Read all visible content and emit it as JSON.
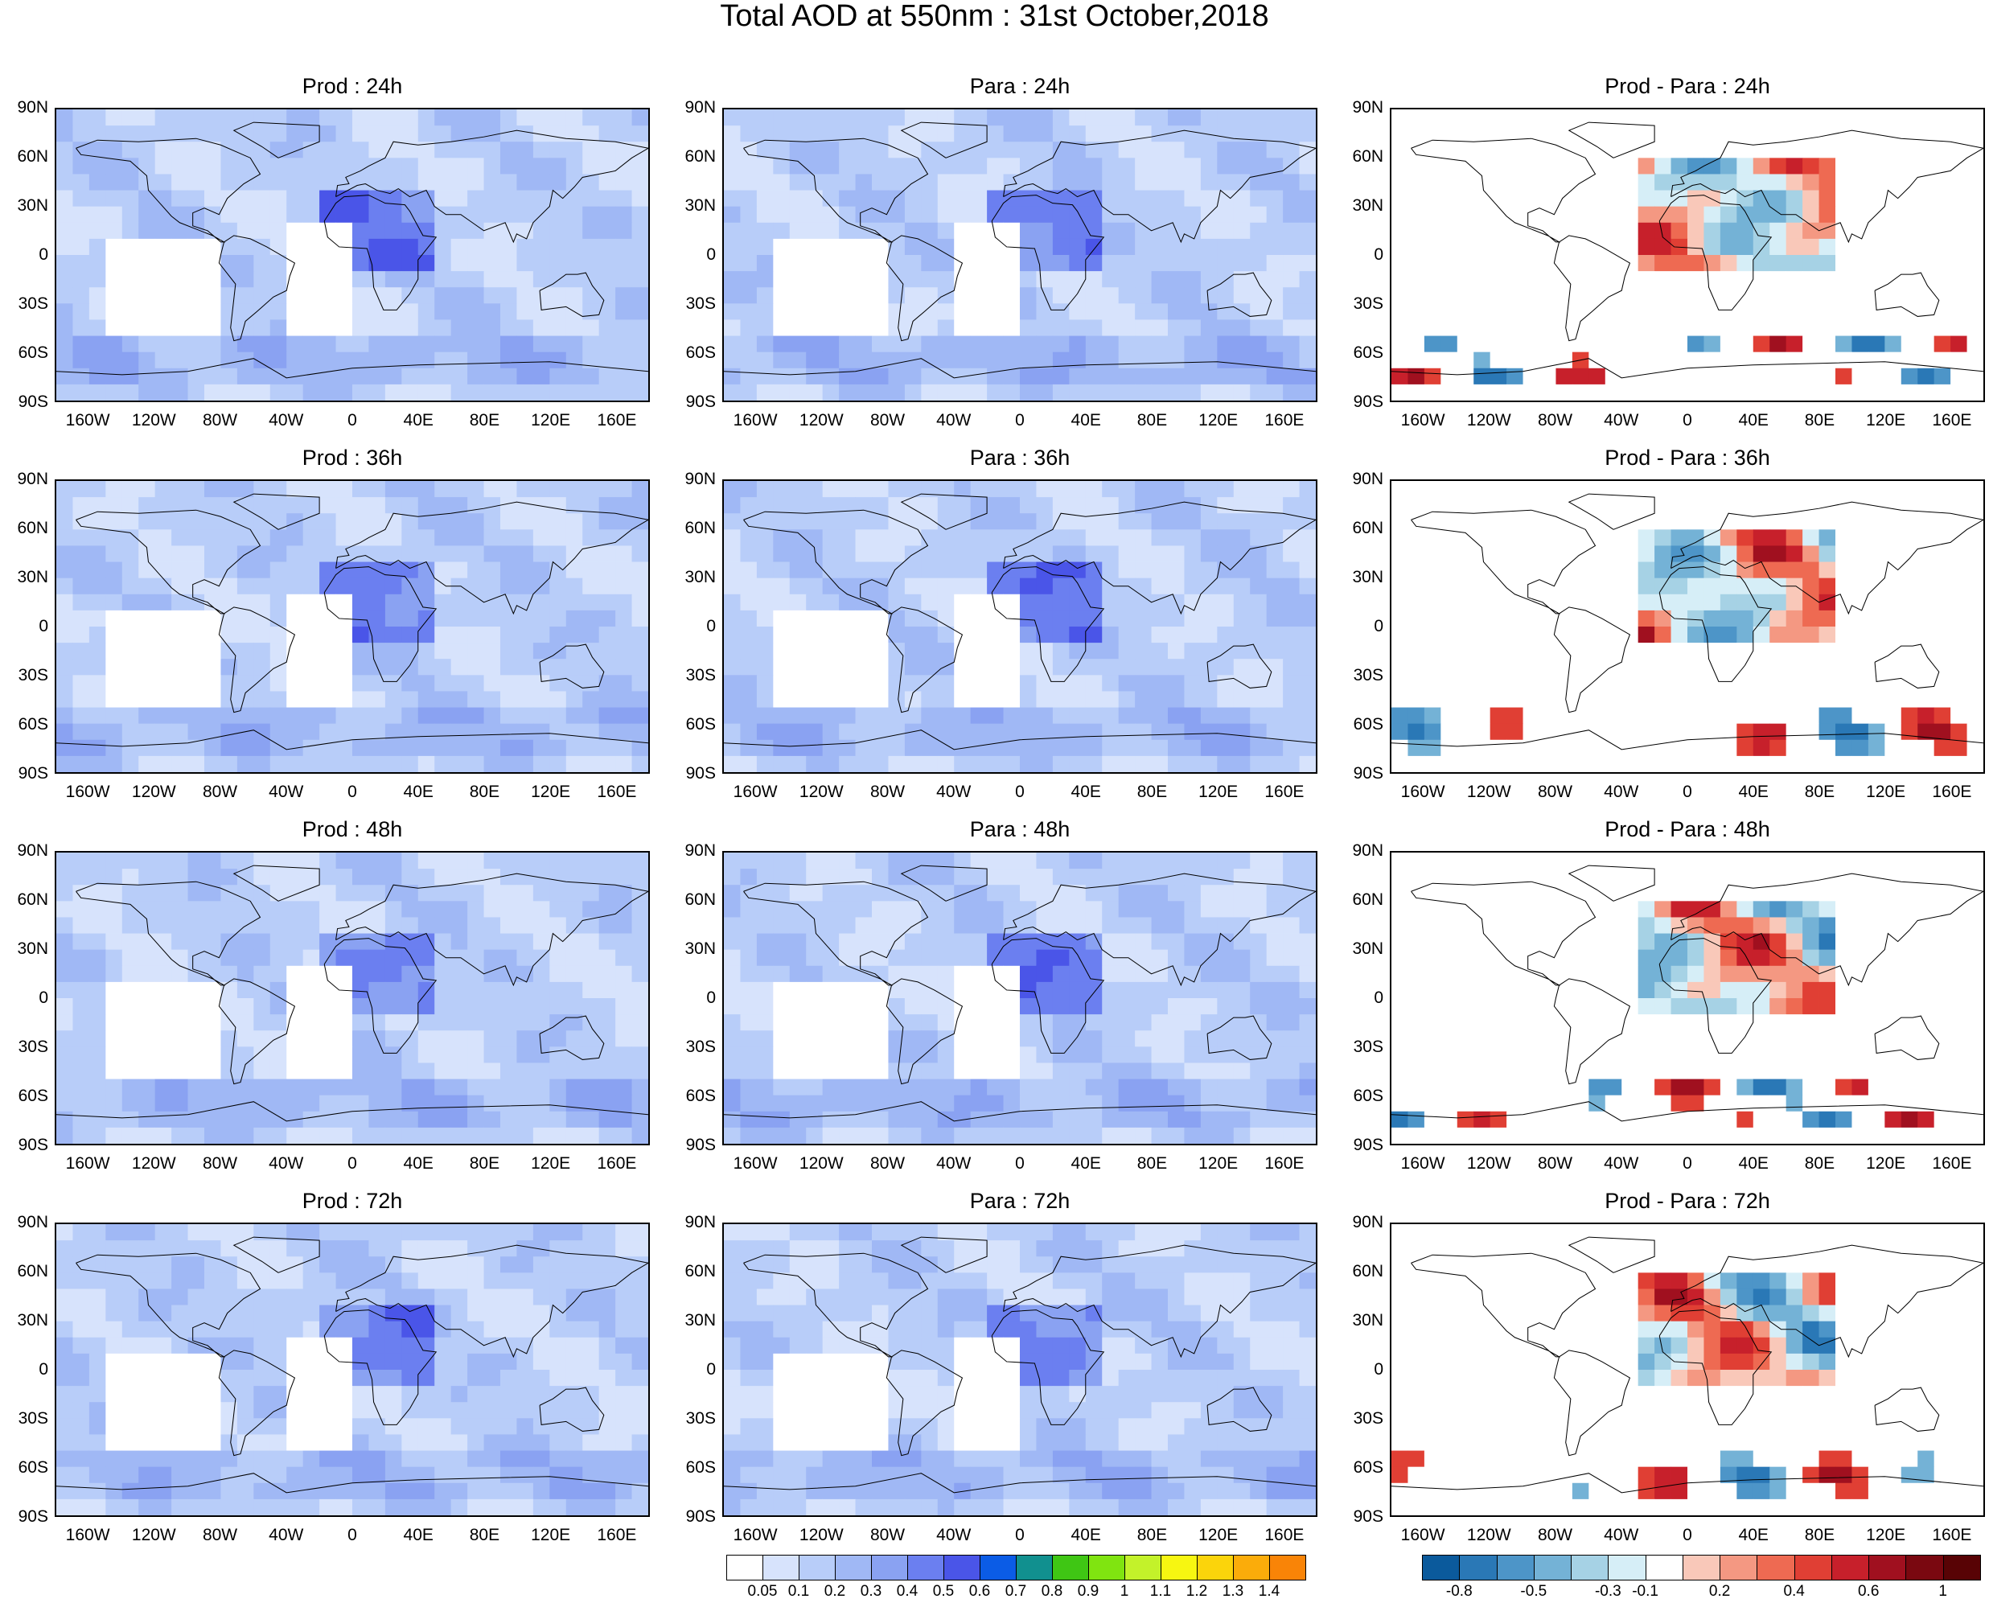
{
  "title": "Total AOD at 550nm : 31st October,2018",
  "rows": [
    [
      "Prod : 24h",
      "Para : 24h",
      "Prod - Para : 24h"
    ],
    [
      "Prod : 36h",
      "Para : 36h",
      "Prod - Para : 36h"
    ],
    [
      "Prod : 48h",
      "Para : 48h",
      "Prod - Para : 48h"
    ],
    [
      "Prod : 72h",
      "Para : 72h",
      "Prod - Para : 72h"
    ]
  ],
  "lat_ticks": [
    "90N",
    "60N",
    "30N",
    "0",
    "30S",
    "60S",
    "90S"
  ],
  "lon_ticks": [
    "160W",
    "120W",
    "80W",
    "40W",
    "0",
    "40E",
    "80E",
    "120E",
    "160E"
  ],
  "aod_colorbar": {
    "colors": [
      "#ffffff",
      "#d7e3fc",
      "#b8cdf9",
      "#a0b8f5",
      "#8aa2f2",
      "#6b7ff0",
      "#4a55e8",
      "#0b5ce6",
      "#11908f",
      "#3fc614",
      "#80e410",
      "#c3f22a",
      "#f7f611",
      "#fbd40b",
      "#fbac0a",
      "#f98407",
      "#f45d06",
      "#ef230b"
    ],
    "labels": [
      "0.05",
      "0.1",
      "0.2",
      "0.3",
      "0.4",
      "0.5",
      "0.6",
      "0.7",
      "0.8",
      "0.9",
      "1",
      "1.1",
      "1.2",
      "1.3",
      "1.4"
    ]
  },
  "diff_colorbar": {
    "colors": [
      "#0b5a9c",
      "#2a78b6",
      "#4d95c8",
      "#74b2d6",
      "#a6d2e5",
      "#d6eef7",
      "#ffffff",
      "#f9c8b9",
      "#f49882",
      "#ee6a52",
      "#e03f34",
      "#c7202b",
      "#a0101f",
      "#7a0810",
      "#580305"
    ],
    "labels": [
      "-0.8",
      "-0.5",
      "-0.3",
      "-0.1",
      "0.2",
      "0.4",
      "0.6",
      "1"
    ]
  }
}
